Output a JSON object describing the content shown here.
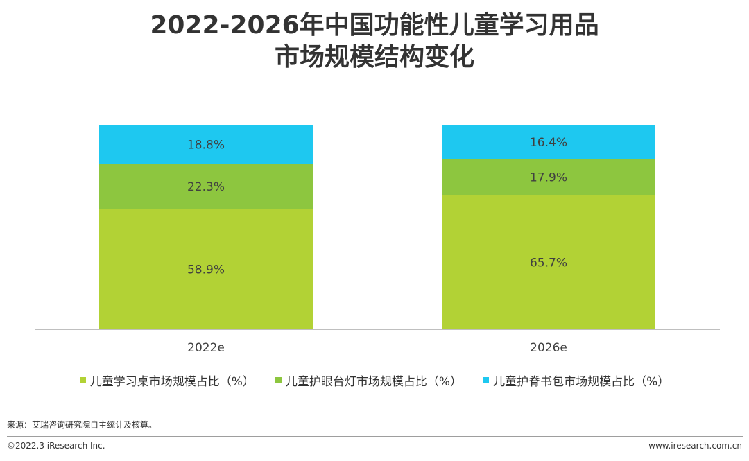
{
  "header": {
    "title_line1": "2022-2026年中国功能性儿童学习用品",
    "title_line2": "市场规模结构变化"
  },
  "chart_data": {
    "type": "bar",
    "stacked": true,
    "title": "2022-2026年中国功能性儿童学习用品市场规模结构变化",
    "categories": [
      "2022e",
      "2026e"
    ],
    "series": [
      {
        "name": "儿童学习桌市场规模占比（%）",
        "color": "#b2d235",
        "values": [
          58.9,
          65.7
        ],
        "labels": [
          "58.9%",
          "65.7%"
        ]
      },
      {
        "name": "儿童护眼台灯市场规模占比（%）",
        "color": "#8dc63f",
        "values": [
          22.3,
          17.9
        ],
        "labels": [
          "22.3%",
          "17.9%"
        ]
      },
      {
        "name": "儿童护脊书包市场规模占比（%）",
        "color": "#1ec8f0",
        "values": [
          18.8,
          16.4
        ],
        "labels": [
          "18.8%",
          "16.4%"
        ]
      }
    ],
    "ylim": [
      0,
      100
    ],
    "grid": false,
    "legend_position": "bottom"
  },
  "footer": {
    "source": "来源：艾瑞咨询研究院自主统计及核算。",
    "copyright": "©2022.3 iResearch Inc.",
    "website": "www.iresearch.com.cn"
  }
}
